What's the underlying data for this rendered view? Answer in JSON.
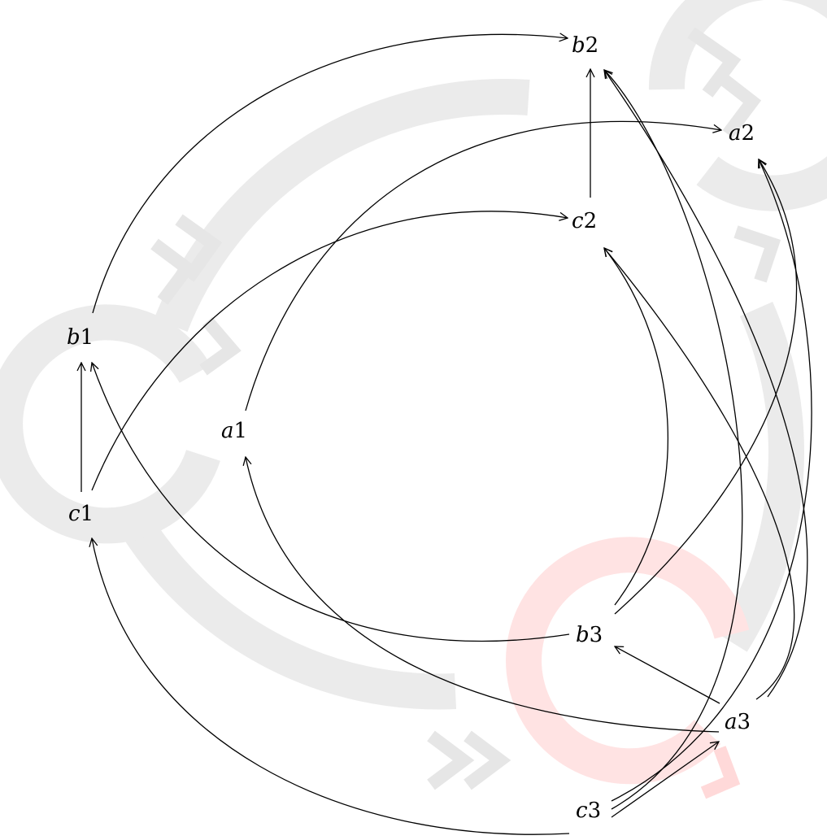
{
  "diagram": {
    "nodes": [
      {
        "id": "a1",
        "var": "a",
        "idx": "1"
      },
      {
        "id": "b1",
        "var": "b",
        "idx": "1"
      },
      {
        "id": "c1",
        "var": "c",
        "idx": "1"
      },
      {
        "id": "a2",
        "var": "a",
        "idx": "2"
      },
      {
        "id": "b2",
        "var": "b",
        "idx": "2"
      },
      {
        "id": "c2",
        "var": "c",
        "idx": "2"
      },
      {
        "id": "a3",
        "var": "a",
        "idx": "3"
      },
      {
        "id": "b3",
        "var": "b",
        "idx": "3"
      },
      {
        "id": "c3",
        "var": "c",
        "idx": "3"
      }
    ],
    "edges": [
      {
        "from": "c1",
        "to": "b1"
      },
      {
        "from": "c2",
        "to": "b2"
      },
      {
        "from": "a3",
        "to": "b3"
      },
      {
        "from": "c3",
        "to": "a3"
      },
      {
        "from": "b1",
        "to": "b2"
      },
      {
        "from": "a1",
        "to": "a2"
      },
      {
        "from": "c1",
        "to": "c2"
      },
      {
        "from": "b3",
        "to": "b1"
      },
      {
        "from": "a3",
        "to": "a1"
      },
      {
        "from": "c3",
        "to": "c1"
      },
      {
        "from": "b3",
        "to": "a2"
      },
      {
        "from": "b3",
        "to": "c2"
      },
      {
        "from": "a3",
        "to": "b2"
      },
      {
        "from": "a3",
        "to": "c2"
      },
      {
        "from": "c3",
        "to": "b2"
      },
      {
        "from": "c3",
        "to": "a2"
      }
    ],
    "colors": {
      "ring_gray": "#ebebeb",
      "ring_highlight": "#ffe3e3",
      "edge": "#000000"
    }
  }
}
